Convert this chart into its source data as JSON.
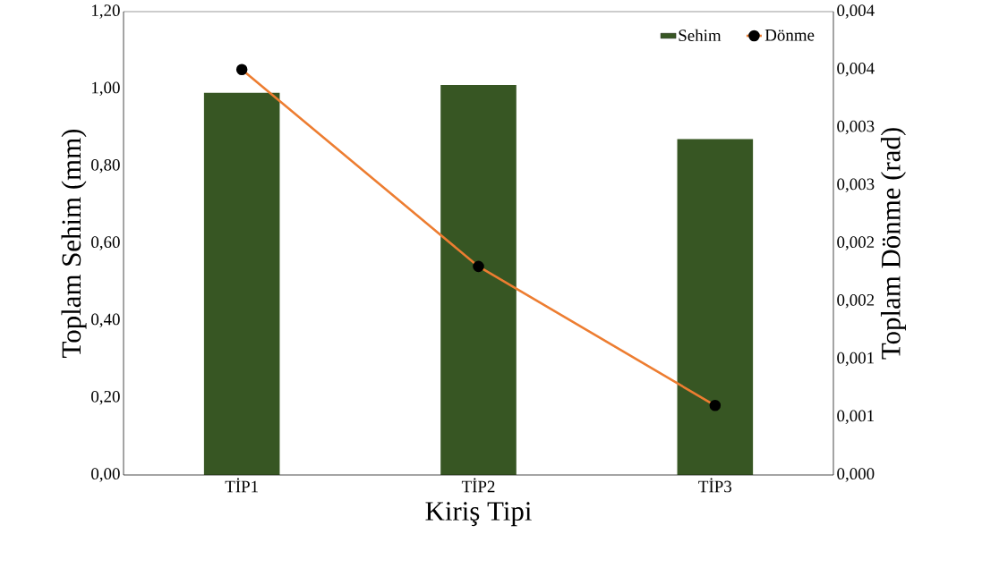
{
  "chart_data": {
    "type": "bar",
    "categories": [
      "TİP1",
      "TİP2",
      "TİP3"
    ],
    "series": [
      {
        "name": "Sehim",
        "color": "#375623",
        "values": [
          0.99,
          1.01,
          0.87
        ]
      },
      {
        "name": "Dönme",
        "type": "line",
        "axis": "y2",
        "color": "#ed7d31",
        "marker": "circle",
        "values": [
          0.0035,
          0.0018,
          0.0006
        ]
      }
    ],
    "xlabel": "Kiriş Tipi",
    "ylabel": "Toplam Sehim (mm)",
    "y2label": "Toplam Dönme (rad)",
    "ylim": [
      0,
      1.2
    ],
    "yticks": [
      {
        "value": 0,
        "label": "0,00"
      },
      {
        "value": 0.2,
        "label": "0,20"
      },
      {
        "value": 0.4,
        "label": "0,40"
      },
      {
        "value": 0.6,
        "label": "0,60"
      },
      {
        "value": 0.8,
        "label": "0,80"
      },
      {
        "value": 1.0,
        "label": "1,00"
      },
      {
        "value": 1.2,
        "label": "1,20"
      }
    ],
    "y2lim": [
      0,
      0.004
    ],
    "y2ticks": [
      {
        "value": 0,
        "label": "0,000"
      },
      {
        "value": 0.0005,
        "label": "0,001"
      },
      {
        "value": 0.001,
        "label": "0,001"
      },
      {
        "value": 0.0015,
        "label": "0,002"
      },
      {
        "value": 0.002,
        "label": "0,002"
      },
      {
        "value": 0.0025,
        "label": "0,003"
      },
      {
        "value": 0.003,
        "label": "0,003"
      },
      {
        "value": 0.0035,
        "label": "0,004"
      },
      {
        "value": 0.004,
        "label": "0,004"
      }
    ],
    "legend": "top right",
    "grid": false
  }
}
